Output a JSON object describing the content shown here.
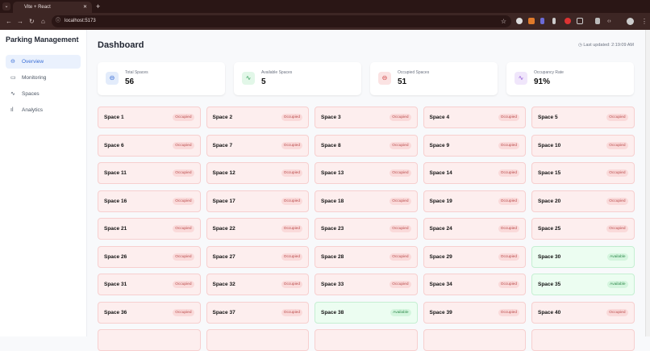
{
  "browser": {
    "tab_title": "Vite + React",
    "url": "localhost:5173"
  },
  "sidebar": {
    "brand": "Parking Management",
    "items": [
      {
        "label": "Overview",
        "icon": "car-icon",
        "active": true
      },
      {
        "label": "Monitoring",
        "icon": "monitor-icon"
      },
      {
        "label": "Spaces",
        "icon": "activity-icon"
      },
      {
        "label": "Analytics",
        "icon": "bar-chart-icon"
      }
    ]
  },
  "header": {
    "title": "Dashboard",
    "last_updated": "Last updated: 2:19:09 AM"
  },
  "stats": [
    {
      "label": "Total Spaces",
      "value": "56",
      "icon": "car-icon",
      "color": "#3b6fd6",
      "bg": "#e3ecfb"
    },
    {
      "label": "Available Spaces",
      "value": "5",
      "icon": "activity-icon",
      "color": "#2f9a55",
      "bg": "#e2f7e8"
    },
    {
      "label": "Occupied Spaces",
      "value": "51",
      "icon": "car-icon",
      "color": "#d14a4a",
      "bg": "#fbe3e3"
    },
    {
      "label": "Occupancy Rate",
      "value": "91%",
      "icon": "activity-icon",
      "color": "#8b4fd6",
      "bg": "#f0e6fb"
    }
  ],
  "status_labels": {
    "occupied": "Occupied",
    "available": "Available"
  },
  "available_spaces": [
    30,
    35,
    38
  ],
  "visible_space_count": 40
}
